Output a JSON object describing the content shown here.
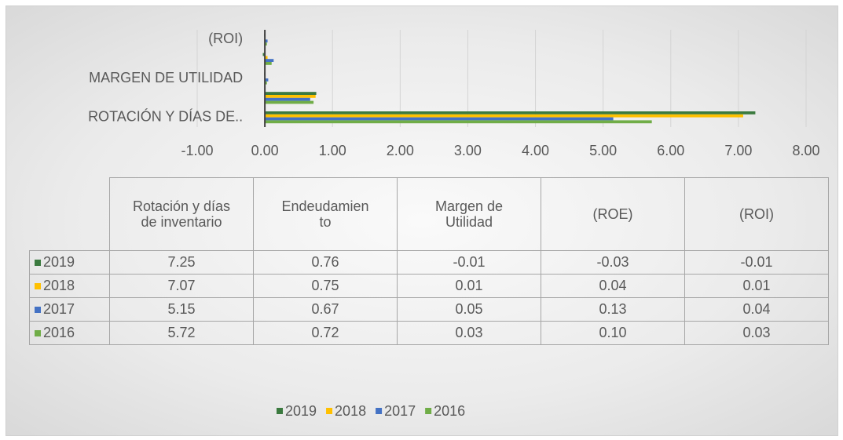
{
  "chart_data": {
    "type": "bar",
    "orientation": "horizontal",
    "categories": [
      "Rotación y días de inventario",
      "Endeudamiento",
      "Margen de Utilidad",
      "(ROE)",
      "(ROI)"
    ],
    "category_axis_labels": [
      "ROTACIÓN Y DÍAS DE..",
      null,
      "MARGEN DE UTILIDAD",
      null,
      "(ROI)"
    ],
    "series": [
      {
        "name": "2019",
        "color": "#3b7a3f",
        "values": [
          7.25,
          0.76,
          -0.01,
          -0.03,
          -0.01
        ],
        "value_labels": [
          "7.25",
          "0.76",
          "-0.01",
          "-0.03",
          "-0.01"
        ]
      },
      {
        "name": "2018",
        "color": "#ffc000",
        "values": [
          7.07,
          0.75,
          0.01,
          0.04,
          0.01
        ],
        "value_labels": [
          "7.07",
          "0.75",
          "0.01",
          "0.04",
          "0.01"
        ]
      },
      {
        "name": "2017",
        "color": "#4472c4",
        "values": [
          5.15,
          0.67,
          0.05,
          0.13,
          0.04
        ],
        "value_labels": [
          "5.15",
          "0.67",
          "0.05",
          "0.13",
          "0.04"
        ]
      },
      {
        "name": "2016",
        "color": "#70ad47",
        "values": [
          5.72,
          0.72,
          0.03,
          0.1,
          0.03
        ],
        "value_labels": [
          "5.72",
          "0.72",
          "0.03",
          "0.10",
          "0.03"
        ]
      }
    ],
    "xlim": [
      -1,
      8
    ],
    "xticks": [
      {
        "value": -1,
        "label": "-1.00"
      },
      {
        "value": 0,
        "label": "0.00"
      },
      {
        "value": 1,
        "label": "1.00"
      },
      {
        "value": 2,
        "label": "2.00"
      },
      {
        "value": 3,
        "label": "3.00"
      },
      {
        "value": 4,
        "label": "4.00"
      },
      {
        "value": 5,
        "label": "5.00"
      },
      {
        "value": 6,
        "label": "6.00"
      },
      {
        "value": 7,
        "label": "7.00"
      },
      {
        "value": 8,
        "label": "8.00"
      }
    ],
    "grid": true,
    "data_table": true,
    "legend": "bottom"
  }
}
